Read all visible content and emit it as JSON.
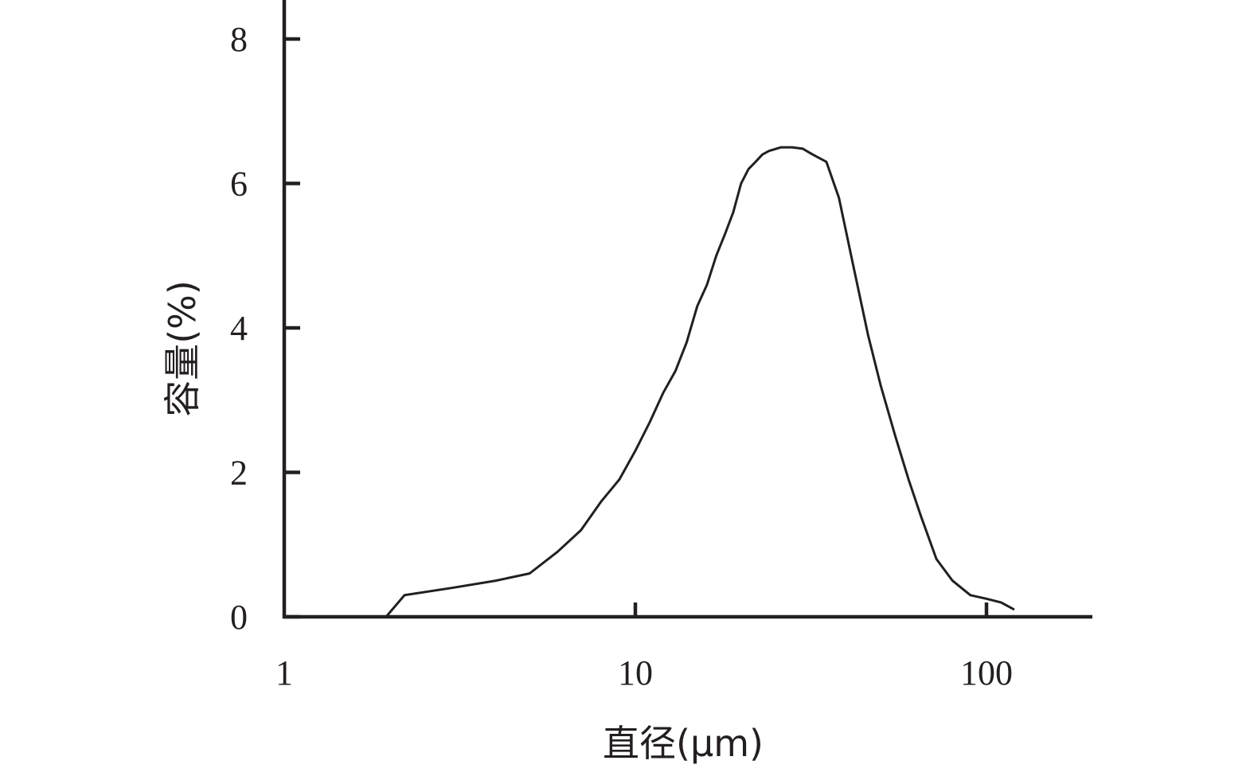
{
  "chart_data": {
    "type": "line",
    "title": "",
    "xlabel": "直径(μm)",
    "ylabel": "容量(%)",
    "x_scale": "log",
    "xlim": [
      1,
      200
    ],
    "ylim": [
      0,
      8.5
    ],
    "x_ticks": [
      1,
      10,
      100
    ],
    "x_tick_labels": [
      "1",
      "10",
      "100"
    ],
    "y_ticks": [
      0,
      2,
      4,
      6,
      8
    ],
    "y_tick_labels": [
      "0",
      "2",
      "4",
      "6",
      "8"
    ],
    "grid": false,
    "legend": "none",
    "line_color": "#231f20",
    "series": [
      {
        "x": [
          1.95,
          2.2,
          3,
          4,
          5,
          6,
          7,
          8,
          9,
          10,
          11,
          12,
          13,
          14,
          15,
          16,
          17,
          18,
          19,
          20,
          21,
          22,
          23,
          24,
          26,
          28,
          30,
          32,
          35,
          38,
          42,
          46,
          50,
          55,
          60,
          65,
          72,
          80,
          90,
          100,
          110,
          120
        ],
        "y": [
          0,
          0.3,
          0.4,
          0.5,
          0.6,
          0.9,
          1.2,
          1.6,
          1.9,
          2.3,
          2.7,
          3.1,
          3.4,
          3.8,
          4.3,
          4.6,
          5.0,
          5.3,
          5.6,
          6.0,
          6.2,
          6.3,
          6.4,
          6.45,
          6.5,
          6.5,
          6.48,
          6.4,
          6.3,
          5.8,
          4.8,
          3.9,
          3.2,
          2.5,
          1.9,
          1.4,
          0.8,
          0.5,
          0.3,
          0.25,
          0.2,
          0.1
        ]
      }
    ]
  }
}
